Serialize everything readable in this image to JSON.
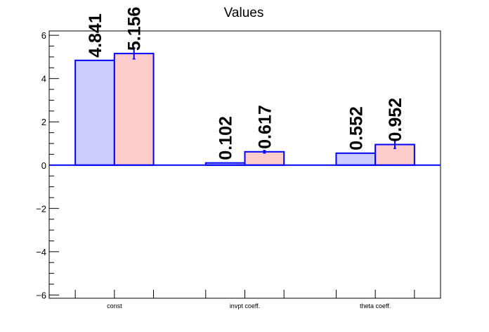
{
  "chart_data": {
    "type": "bar",
    "title": "Values",
    "categories": [
      "const",
      "invpt coeff.",
      "theta coeff."
    ],
    "series": [
      {
        "color": "#ccccff",
        "values": [
          4.841,
          0.102,
          0.552
        ],
        "labels": [
          "4.841",
          "0.102",
          "0.552"
        ]
      },
      {
        "color": "#ffcccc",
        "values": [
          5.156,
          0.617,
          0.952
        ],
        "labels": [
          "5.156",
          "0.617",
          "0.952"
        ],
        "errors": [
          0.25,
          0.06,
          0.18
        ]
      }
    ],
    "edge_color": "#0000ff",
    "ylim": [
      -6.15,
      6.2
    ],
    "yticks": [
      -6,
      -4,
      -2,
      0,
      2,
      4,
      6
    ],
    "ytick_labels": [
      "−6",
      "−4",
      "−2",
      "0",
      "2",
      "4",
      "6"
    ],
    "grid": false,
    "legend": "none"
  }
}
